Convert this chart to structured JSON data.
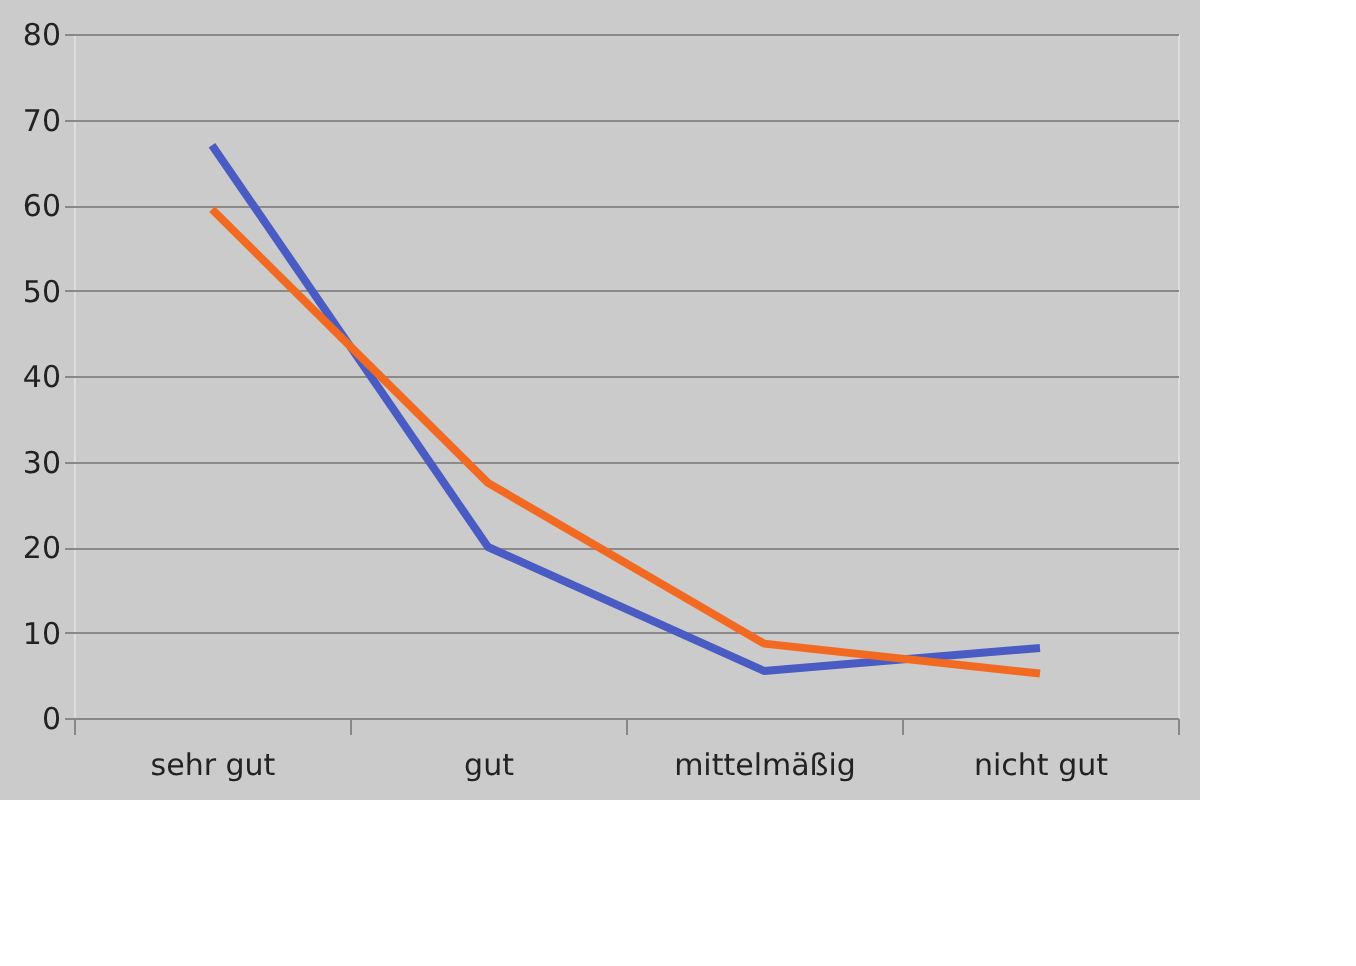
{
  "chart_data": {
    "type": "line",
    "categories": [
      "sehr gut",
      "gut",
      "mittelmäßig",
      "nicht gut"
    ],
    "series": [
      {
        "color": "#4a5cc4",
        "values": [
          67,
          20,
          5.5,
          8.2
        ]
      },
      {
        "color": "#f26a22",
        "values": [
          59.5,
          27.5,
          8.7,
          5.2
        ]
      }
    ],
    "ylim": [
      0,
      80
    ],
    "yticks": [
      0,
      10,
      20,
      30,
      40,
      50,
      60,
      70,
      80
    ],
    "grid": "y",
    "legend": false,
    "marker": "none",
    "line_style": "solid"
  }
}
